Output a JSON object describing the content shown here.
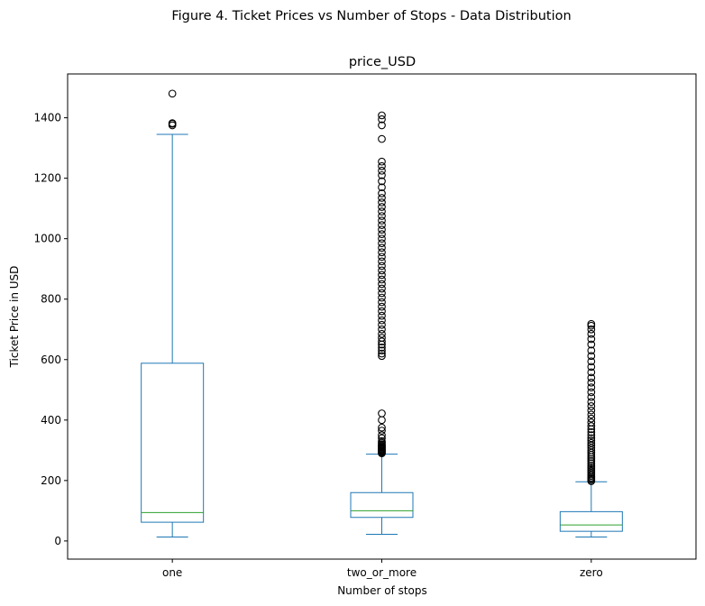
{
  "chart_data": {
    "type": "box",
    "suptitle": "Figure 4. Ticket Prices vs Number of Stops - Data Distribution",
    "title": "price_USD",
    "xlabel": "Number of stops",
    "ylabel": "Ticket Price in USD",
    "ylim": [
      -60,
      1545
    ],
    "yticks": [
      0,
      200,
      400,
      600,
      800,
      1000,
      1200,
      1400
    ],
    "categories": [
      "one",
      "two_or_more",
      "zero"
    ],
    "box_color": "#1f77b4",
    "median_color": "#2ca02c",
    "boxes": [
      {
        "category": "one",
        "whisker_low": 13,
        "q1": 62,
        "median": 94,
        "q3": 588,
        "whisker_high": 1345,
        "outliers": [
          1375,
          1380,
          1382,
          1480
        ]
      },
      {
        "category": "two_or_more",
        "whisker_low": 22,
        "q1": 78,
        "median": 100,
        "q3": 160,
        "whisker_high": 287,
        "outliers": [
          290,
          292,
          295,
          298,
          300,
          303,
          305,
          308,
          310,
          313,
          316,
          320,
          325,
          330,
          340,
          350,
          365,
          375,
          400,
          422,
          612,
          620,
          630,
          640,
          650,
          660,
          672,
          685,
          700,
          715,
          730,
          745,
          760,
          775,
          790,
          805,
          820,
          835,
          850,
          865,
          880,
          895,
          910,
          925,
          940,
          955,
          970,
          985,
          1000,
          1015,
          1030,
          1045,
          1060,
          1075,
          1090,
          1105,
          1120,
          1135,
          1150,
          1170,
          1190,
          1210,
          1225,
          1240,
          1255,
          1330,
          1375,
          1395,
          1408
        ]
      },
      {
        "category": "zero",
        "whisker_low": 13,
        "q1": 32,
        "median": 53,
        "q3": 97,
        "whisker_high": 196,
        "outliers": [
          198,
          202,
          206,
          210,
          215,
          220,
          226,
          232,
          238,
          244,
          250,
          257,
          264,
          271,
          278,
          285,
          292,
          300,
          308,
          316,
          324,
          332,
          340,
          350,
          360,
          370,
          380,
          392,
          405,
          418,
          432,
          446,
          460,
          476,
          492,
          508,
          524,
          540,
          558,
          576,
          594,
          612,
          630,
          650,
          668,
          685,
          700,
          712,
          718
        ]
      }
    ]
  }
}
